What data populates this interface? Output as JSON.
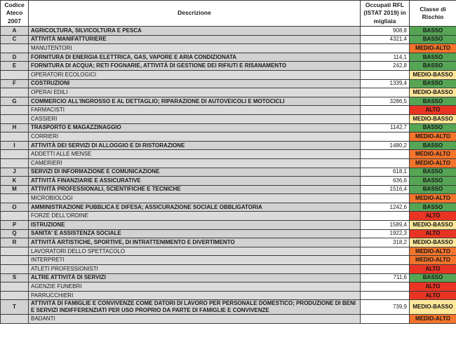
{
  "header": {
    "col_codice": "Codice Ateco 2007",
    "col_descrizione": "Descrizione",
    "col_occupati": "Occupati RFL (ISTAT 2019) in migliaia",
    "col_classe": "Classe di Rischio"
  },
  "colors": {
    "BASSO": "#55a555",
    "MEDIO-BASSO": "#ffe699",
    "MEDIO-ALTO": "#f4742b",
    "ALTO": "#ea3423",
    "sector_row_bg": "#d2d2d2",
    "sub_row_bg": "#dbdbdb"
  },
  "rows": [
    {
      "code": "A",
      "desc": "AGRICOLTURA, SILVICOLTURA E PESCA",
      "value": "908,8",
      "risk": "BASSO",
      "type": "sector"
    },
    {
      "code": "C",
      "desc": "ATTIVITÀ MANIFATTURIERE",
      "value": "4321,4",
      "risk": "BASSO",
      "type": "sector"
    },
    {
      "code": "",
      "desc": "MANUTENTORI",
      "value": "",
      "risk": "MEDIO-ALTO",
      "type": "sub"
    },
    {
      "code": "D",
      "desc": "FORNITURA DI ENERGIA ELETTRICA, GAS, VAPORE E ARIA CONDIZIONATA",
      "value": "114,1",
      "risk": "BASSO",
      "type": "sector"
    },
    {
      "code": "E",
      "desc": "FORNITURA DI ACQUA; RETI FOGNARIE, ATTIVITÀ DI GESTIONE DEI RIFIUTI E RISANAMENTO",
      "value": "242,8",
      "risk": "BASSO",
      "type": "sector"
    },
    {
      "code": "",
      "desc": "OPERATORI ECOLOGICI",
      "value": "",
      "risk": "MEDIO-BASSO",
      "type": "sub"
    },
    {
      "code": "F",
      "desc": "COSTRUZIONI",
      "value": "1339,4",
      "risk": "BASSO",
      "type": "sector"
    },
    {
      "code": "",
      "desc": "OPERAI EDILI",
      "value": "",
      "risk": "MEDIO-BASSO",
      "type": "sub"
    },
    {
      "code": "G",
      "desc": "COMMERCIO ALL'INGROSSO E AL DETTAGLIO; RIPARAZIONE DI AUTOVEICOLI E MOTOCICLI",
      "value": "3286,5",
      "risk": "BASSO",
      "type": "sector"
    },
    {
      "code": "",
      "desc": "FARMACISTI",
      "value": "",
      "risk": "ALTO",
      "type": "sub"
    },
    {
      "code": "",
      "desc": "CASSIERI",
      "value": "",
      "risk": "MEDIO-BASSO",
      "type": "sub"
    },
    {
      "code": "H",
      "desc": "TRASPORTO E MAGAZZINAGGIO",
      "value": "1142,7",
      "risk": "BASSO",
      "type": "sector"
    },
    {
      "code": "",
      "desc": "CORRIERI",
      "value": "",
      "risk": "MEDIO-ALTO",
      "type": "sub"
    },
    {
      "code": "I",
      "desc": "ATTIVITÀ DEI SERVIZI DI ALLOGGIO E DI RISTORAZIONE",
      "value": "1480,2",
      "risk": "BASSO",
      "type": "sector"
    },
    {
      "code": "",
      "desc": "ADDETTI ALLE MENSE",
      "value": "",
      "risk": "MEDIO-ALTO",
      "type": "sub"
    },
    {
      "code": "",
      "desc": "CAMERIERI",
      "value": "",
      "risk": "MEDIO-ALTO",
      "type": "sub"
    },
    {
      "code": "J",
      "desc": "SERVIZI DI INFORMAZIONE E COMUNICAZIONE",
      "value": "618,1",
      "risk": "BASSO",
      "type": "sector"
    },
    {
      "code": "K",
      "desc": "ATTIVITÀ FINANZIARIE E ASSICURATIVE",
      "value": "636,6",
      "risk": "BASSO",
      "type": "sector"
    },
    {
      "code": "M",
      "desc": "ATTIVITÀ PROFESSIONALI, SCIENTIFICHE E TECNICHE",
      "value": "1516,4",
      "risk": "BASSO",
      "type": "sector"
    },
    {
      "code": "",
      "desc": "MICROBIOLOGI",
      "value": "",
      "risk": "MEDIO-ALTO",
      "type": "sub"
    },
    {
      "code": "O",
      "desc": "AMMINISTRAZIONE PUBBLICA E DIFESA; ASSICURAZIONE SOCIALE OBBLIGATORIA",
      "value": "1242,6",
      "risk": "BASSO",
      "type": "sector"
    },
    {
      "code": "",
      "desc": "FORZE DELL'ORDINE",
      "value": "",
      "risk": "ALTO",
      "type": "sub"
    },
    {
      "code": "P",
      "desc": "ISTRUZIONE",
      "value": "1589,4",
      "risk": "MEDIO-BASSO",
      "type": "sector"
    },
    {
      "code": "Q",
      "desc": "SANITA' E ASSISTENZA SOCIALE",
      "value": "1922,3",
      "risk": "ALTO",
      "type": "sector"
    },
    {
      "code": "R",
      "desc": "ATTIVITÀ ARTISTICHE, SPORTIVE, DI INTRATTENIMENTO E DIVERTIMENTO",
      "value": "318,2",
      "risk": "MEDIO-BASSO",
      "type": "sector"
    },
    {
      "code": "",
      "desc": "LAVORATORI DELLO SPETTACOLO",
      "value": "",
      "risk": "MEDIO-ALTO",
      "type": "sub"
    },
    {
      "code": "",
      "desc": "INTERPRETI",
      "value": "",
      "risk": "MEDIO-ALTO",
      "type": "sub"
    },
    {
      "code": "",
      "desc": "ATLETI PROFESSIONISTI",
      "value": "",
      "risk": "ALTO",
      "type": "sub"
    },
    {
      "code": "S",
      "desc": "ALTRE ATTIVITÀ DI SERVIZI",
      "value": "711,6",
      "risk": "BASSO",
      "type": "sector"
    },
    {
      "code": "",
      "desc": "AGENZIE FUNEBRI",
      "value": "",
      "risk": "ALTO",
      "type": "sub"
    },
    {
      "code": "",
      "desc": "PARRUCCHIERI",
      "value": "",
      "risk": "ALTO",
      "type": "sub"
    },
    {
      "code": "T",
      "desc": "ATTIVITÀ DI FAMIGLIE E CONVIVENZE COME DATORI DI LAVORO PER PERSONALE DOMESTICO; PRODUZIONE DI BENI E SERVIZI INDIFFERENZIATI PER USO PROPRIO  DA PARTE DI FAMIGLIE E CONVIVENZE",
      "value": "739,9",
      "risk": "MEDIO-BASSO",
      "type": "sector"
    },
    {
      "code": "",
      "desc": "BADANTI",
      "value": "",
      "risk": "MEDIO-ALTO",
      "type": "sub"
    }
  ]
}
